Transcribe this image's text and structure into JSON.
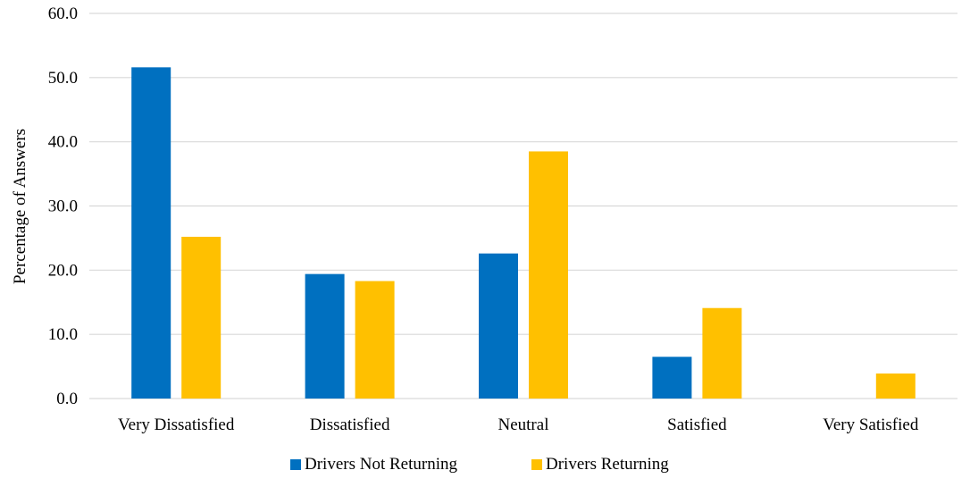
{
  "chart_data": {
    "type": "bar",
    "title": "",
    "xlabel": "",
    "ylabel": "Percentage of Answers",
    "ylim": [
      0,
      60
    ],
    "y_ticks": [
      "0.0",
      "10.0",
      "20.0",
      "30.0",
      "40.0",
      "50.0",
      "60.0"
    ],
    "grid": "horizontal",
    "legend_position": "bottom",
    "categories": [
      "Very Dissatisfied",
      "Dissatisfied",
      "Neutral",
      "Satisfied",
      "Very Satisfied"
    ],
    "series": [
      {
        "name": "Drivers Not Returning",
        "color": "#0070C0",
        "values": [
          51.6,
          19.4,
          22.6,
          6.5,
          0.0
        ]
      },
      {
        "name": "Drivers Returning",
        "color": "#FFC000",
        "values": [
          25.2,
          18.3,
          38.5,
          14.1,
          3.9
        ]
      }
    ],
    "gridline_color": "#d9d9d9"
  }
}
